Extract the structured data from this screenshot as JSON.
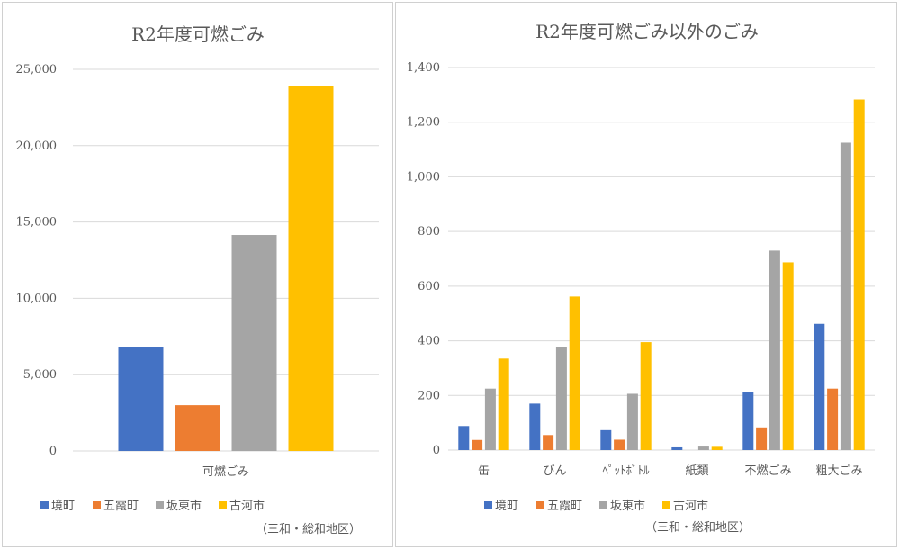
{
  "chart_data": [
    {
      "type": "bar",
      "title": "R2年度可燃ごみ",
      "categories": [
        "可燃ごみ"
      ],
      "series": [
        {
          "name": "境町",
          "values": [
            6800
          ]
        },
        {
          "name": "五霞町",
          "values": [
            3000
          ]
        },
        {
          "name": "坂東市",
          "values": [
            14150
          ]
        },
        {
          "name": "古河市",
          "values": [
            23900
          ]
        }
      ],
      "ylim": [
        0,
        25000
      ],
      "yticks": [
        0,
        5000,
        10000,
        15000,
        20000,
        25000
      ],
      "ytick_labels": [
        "0",
        "5,000",
        "10,000",
        "15,000",
        "20,000",
        "25,000"
      ],
      "grid": true,
      "legend": "bottom",
      "note": "（三和・総和地区）"
    },
    {
      "type": "bar",
      "title": "R2年度可燃ごみ以外のごみ",
      "categories": [
        "缶",
        "びん",
        "ﾍﾟｯﾄﾎﾞﾄﾙ",
        "紙類",
        "不燃ごみ",
        "粗大ごみ"
      ],
      "series": [
        {
          "name": "境町",
          "values": [
            88,
            170,
            73,
            10,
            213,
            462
          ]
        },
        {
          "name": "五霞町",
          "values": [
            37,
            55,
            38,
            0,
            83,
            225
          ]
        },
        {
          "name": "坂東市",
          "values": [
            225,
            378,
            206,
            13,
            730,
            1125
          ]
        },
        {
          "name": "古河市",
          "values": [
            335,
            562,
            395,
            12,
            687,
            1283
          ]
        }
      ],
      "ylim": [
        0,
        1400
      ],
      "yticks": [
        0,
        200,
        400,
        600,
        800,
        1000,
        1200,
        1400
      ],
      "ytick_labels": [
        "0",
        "200",
        "400",
        "600",
        "800",
        "1,000",
        "1,200",
        "1,400"
      ],
      "grid": true,
      "legend": "bottom",
      "note": "（三和・総和地区）"
    }
  ],
  "colors": [
    "#4472C4",
    "#ED7D31",
    "#A5A5A5",
    "#FFC000"
  ]
}
